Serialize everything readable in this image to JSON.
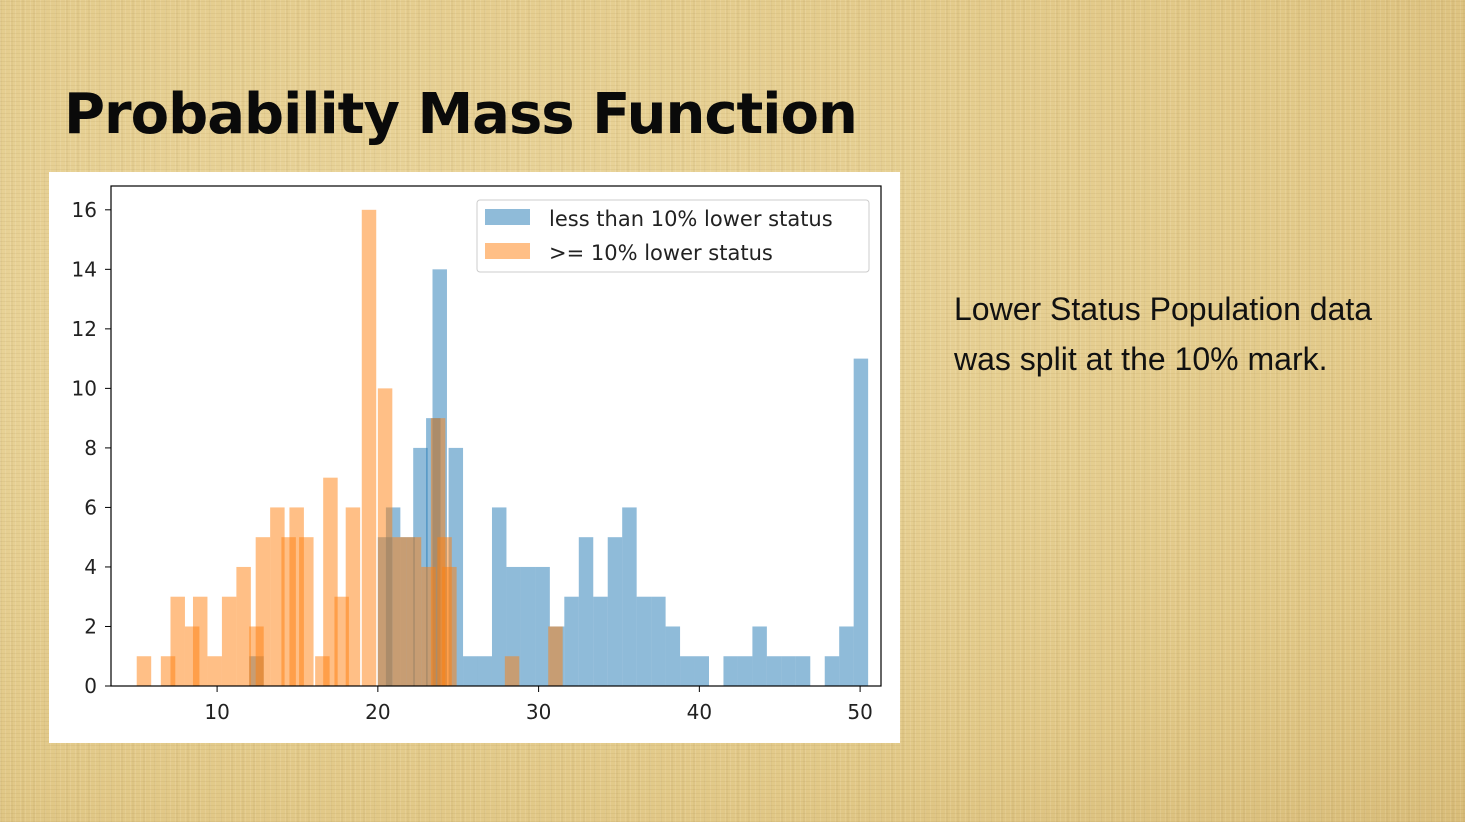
{
  "slide": {
    "title": "Probability Mass Function",
    "description": "Lower Status Population data was split at the 10% mark."
  },
  "chart_data": {
    "type": "bar",
    "bin_width": 0.9,
    "xlim": [
      3.4,
      51.3
    ],
    "ylim": [
      0,
      16.8
    ],
    "x_ticks": [
      10,
      20,
      30,
      40,
      50
    ],
    "y_ticks": [
      0,
      2,
      4,
      6,
      8,
      10,
      12,
      14,
      16
    ],
    "grid": false,
    "legend_position": "top-right",
    "series": [
      {
        "name": "less than 10% lower status",
        "color": "#1f77b4",
        "opacity": 0.5,
        "bins": [
          [
            12,
            1
          ],
          [
            20,
            5
          ],
          [
            20.5,
            6
          ],
          [
            21.4,
            5
          ],
          [
            22.2,
            8
          ],
          [
            23,
            9
          ],
          [
            23.4,
            14
          ],
          [
            24.4,
            8
          ],
          [
            25.3,
            1
          ],
          [
            26.2,
            1
          ],
          [
            27.1,
            6
          ],
          [
            28,
            4
          ],
          [
            28.9,
            4
          ],
          [
            29.8,
            4
          ],
          [
            30.7,
            2
          ],
          [
            31.6,
            3
          ],
          [
            32.5,
            5
          ],
          [
            33.4,
            3
          ],
          [
            34.3,
            5
          ],
          [
            35.2,
            6
          ],
          [
            36.1,
            3
          ],
          [
            37,
            3
          ],
          [
            37.9,
            2
          ],
          [
            38.8,
            1
          ],
          [
            39.7,
            1
          ],
          [
            41.5,
            1
          ],
          [
            42.4,
            1
          ],
          [
            43.3,
            2
          ],
          [
            44.2,
            1
          ],
          [
            45.1,
            1
          ],
          [
            46,
            1
          ],
          [
            47.8,
            1
          ],
          [
            48.7,
            2
          ],
          [
            49.6,
            11
          ]
        ]
      },
      {
        "name": ">= 10% lower status",
        "color": "#ff7f0e",
        "opacity": 0.5,
        "bins": [
          [
            5,
            1
          ],
          [
            6.5,
            1
          ],
          [
            7.1,
            3
          ],
          [
            8,
            2
          ],
          [
            8.5,
            3
          ],
          [
            9.4,
            1
          ],
          [
            10.3,
            3
          ],
          [
            11.2,
            4
          ],
          [
            12,
            2
          ],
          [
            12.4,
            5
          ],
          [
            13.3,
            6
          ],
          [
            14,
            5
          ],
          [
            14.5,
            6
          ],
          [
            15.1,
            5
          ],
          [
            16.1,
            1
          ],
          [
            16.6,
            7
          ],
          [
            17.3,
            3
          ],
          [
            18,
            6
          ],
          [
            19,
            16
          ],
          [
            20,
            10
          ],
          [
            20.9,
            5
          ],
          [
            21.8,
            5
          ],
          [
            22.7,
            4
          ],
          [
            23.3,
            9
          ],
          [
            23.7,
            5
          ],
          [
            24,
            4
          ],
          [
            27.9,
            1
          ],
          [
            30.6,
            2
          ]
        ]
      }
    ]
  }
}
